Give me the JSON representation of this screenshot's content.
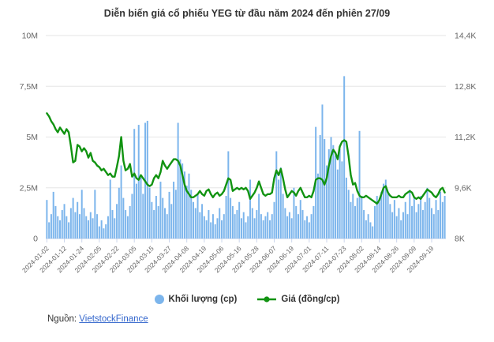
{
  "title": "Diễn biến giá cổ phiếu YEG từ đầu năm 2024 đến phiên 27/09",
  "source": {
    "prefix": "Nguồn:",
    "link_text": "VietstockFinance"
  },
  "legend": {
    "volume_label": "Khối lượng (cp)",
    "price_label": "Giá (đồng/cp)"
  },
  "colors": {
    "bar": "#7cb5ec",
    "line": "#119311",
    "grid": "#e6e6e6",
    "axis_line": "#ccd6eb",
    "tick": "#ccd6eb",
    "axis_text": "#666666",
    "title_text": "#333333",
    "link": "#3366cc"
  },
  "chart_data": {
    "type": "combo",
    "title": "Diễn biến giá cổ phiếu YEG từ đầu năm 2024 đến phiên 27/09",
    "grid": true,
    "legend_position": "bottom",
    "x_tick_every": 8,
    "x_tick_labels": [
      "2024-01-02",
      "2024-01-12",
      "2024-01-24",
      "2024-02-05",
      "2024-02-22",
      "2024-03-05",
      "2024-03-15",
      "2024-03-27",
      "2024-04-08",
      "2024-04-19",
      "2024-05-06",
      "2024-05-16",
      "2024-05-28",
      "2024-06-07",
      "2024-06-19",
      "2024-07-01",
      "2024-07-11",
      "2024-07-23",
      "2024-08-02",
      "2024-08-14",
      "2024-08-26",
      "2024-09-09",
      "2024-09-19"
    ],
    "left_axis": {
      "label": "Khối lượng (cp)",
      "min": 0,
      "max": 10,
      "unit": "M",
      "ticks": [
        "0",
        "2,5M",
        "5M",
        "7,5M",
        "10M"
      ]
    },
    "right_axis": {
      "label": "Giá (đồng/cp)",
      "min": 8,
      "max": 14.4,
      "unit": "K",
      "ticks": [
        "8K",
        "9,6K",
        "11,2K",
        "12,8K",
        "14,4K"
      ]
    },
    "series": [
      {
        "name": "Khối lượng (cp)",
        "type": "bar",
        "axis": "left",
        "unit": "triệu cp",
        "values": [
          1.9,
          0.8,
          1.2,
          2.3,
          1.6,
          1.1,
          0.9,
          1.4,
          1.7,
          1.1,
          0.8,
          1.5,
          2.0,
          1.3,
          1.8,
          1.2,
          2.4,
          1.5,
          1.1,
          0.9,
          1.3,
          1.0,
          2.4,
          1.2,
          0.6,
          0.9,
          0.5,
          0.7,
          1.1,
          2.9,
          1.4,
          1.0,
          1.7,
          2.5,
          3.6,
          2.0,
          1.4,
          1.1,
          1.6,
          2.2,
          5.4,
          2.7,
          5.6,
          3.0,
          2.2,
          5.7,
          5.8,
          2.5,
          1.8,
          1.4,
          2.1,
          1.6,
          2.8,
          2.0,
          1.5,
          1.2,
          2.3,
          1.7,
          2.8,
          2.4,
          5.7,
          3.9,
          3.7,
          3.3,
          2.6,
          3.2,
          2.4,
          1.8,
          1.5,
          2.2,
          1.3,
          1.7,
          1.1,
          0.9,
          1.4,
          0.8,
          1.2,
          0.7,
          1.0,
          1.5,
          0.9,
          1.2,
          2.1,
          4.3,
          2.0,
          1.6,
          1.2,
          1.4,
          1.8,
          1.0,
          1.3,
          0.8,
          1.1,
          2.9,
          1.5,
          1.0,
          1.4,
          2.2,
          1.2,
          0.9,
          1.1,
          1.3,
          0.9,
          1.2,
          1.8,
          4.3,
          2.9,
          3.5,
          2.2,
          1.5,
          1.1,
          1.3,
          1.0,
          2.5,
          1.6,
          1.2,
          1.9,
          1.4,
          0.9,
          1.1,
          0.8,
          1.2,
          1.6,
          5.5,
          3.2,
          5.1,
          6.6,
          4.9,
          3.6,
          4.4,
          5.0,
          4.6,
          4.1,
          3.4,
          4.4,
          3.8,
          8.0,
          3.0,
          2.4,
          1.8,
          2.2,
          1.6,
          2.0,
          5.3,
          2.1,
          1.4,
          0.9,
          1.2,
          0.8,
          0.6,
          1.6,
          2.1,
          1.8,
          2.3,
          2.7,
          2.9,
          2.2,
          1.7,
          1.3,
          1.9,
          1.1,
          1.5,
          0.9,
          1.3,
          1.8,
          1.2,
          2.4,
          1.6,
          2.0,
          1.3,
          1.7,
          2.1,
          1.4,
          1.8,
          2.5,
          2.0,
          1.5,
          1.2,
          1.9,
          1.4,
          2.3,
          1.8,
          2.1
        ]
      },
      {
        "name": "Giá (đồng/cp)",
        "type": "line",
        "axis": "right",
        "unit": "nghìn đồng",
        "values": [
          11.95,
          11.85,
          11.7,
          11.6,
          11.45,
          11.35,
          11.5,
          11.4,
          11.3,
          11.45,
          11.35,
          10.9,
          10.4,
          10.45,
          10.95,
          10.9,
          10.75,
          10.85,
          10.75,
          10.55,
          10.7,
          10.45,
          10.4,
          10.3,
          10.25,
          10.15,
          10.2,
          10.1,
          10.0,
          10.05,
          9.95,
          9.95,
          10.25,
          10.6,
          11.2,
          10.45,
          10.15,
          10.2,
          10.35,
          9.95,
          10.05,
          9.9,
          9.85,
          10.0,
          9.9,
          9.8,
          9.7,
          9.65,
          9.7,
          9.9,
          10.0,
          9.9,
          10.1,
          10.45,
          10.3,
          10.2,
          10.3,
          10.4,
          10.5,
          10.5,
          10.45,
          10.3,
          10.0,
          9.7,
          9.5,
          9.4,
          9.3,
          9.3,
          9.35,
          9.4,
          9.5,
          9.4,
          9.35,
          9.5,
          9.55,
          9.4,
          9.3,
          9.4,
          9.45,
          9.35,
          9.4,
          9.5,
          9.7,
          9.9,
          9.85,
          9.5,
          9.55,
          9.6,
          9.55,
          9.6,
          9.55,
          9.6,
          9.5,
          9.25,
          9.35,
          9.45,
          9.6,
          9.8,
          9.6,
          9.4,
          9.35,
          9.4,
          9.4,
          9.45,
          9.9,
          10.15,
          10.0,
          10.2,
          9.9,
          9.55,
          9.3,
          9.4,
          9.5,
          9.45,
          9.35,
          9.5,
          9.6,
          9.45,
          9.3,
          9.3,
          9.35,
          9.3,
          9.5,
          9.85,
          9.9,
          9.9,
          9.85,
          9.7,
          9.9,
          10.3,
          10.6,
          10.8,
          10.7,
          10.5,
          10.9,
          11.05,
          11.1,
          11.05,
          10.6,
          10.0,
          9.7,
          9.75,
          9.5,
          9.35,
          9.3,
          9.3,
          9.35,
          9.3,
          9.25,
          9.2,
          9.15,
          9.1,
          9.2,
          9.4,
          9.6,
          9.65,
          9.45,
          9.35,
          9.3,
          9.3,
          9.3,
          9.35,
          9.3,
          9.3,
          9.4,
          9.45,
          9.5,
          9.45,
          9.3,
          9.25,
          9.3,
          9.25,
          9.35,
          9.45,
          9.55,
          9.5,
          9.45,
          9.35,
          9.3,
          9.4,
          9.55,
          9.6,
          9.45
        ]
      }
    ]
  }
}
